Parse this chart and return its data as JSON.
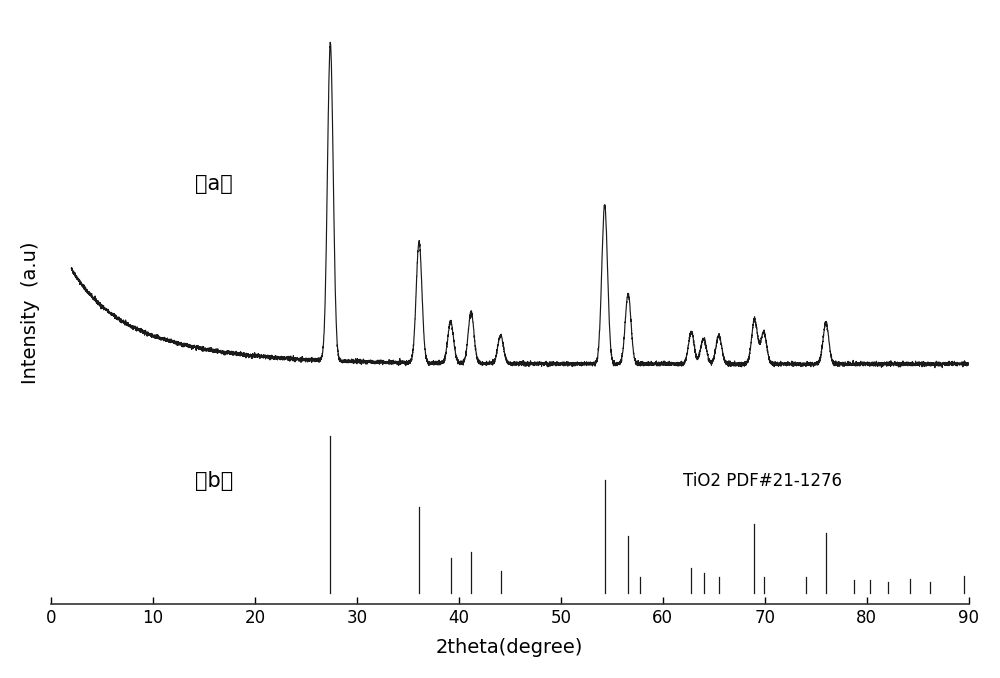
{
  "title": "",
  "xlabel": "2theta(degree)",
  "ylabel": "Intensity  (a.u)",
  "xlim": [
    0,
    90
  ],
  "background_color": "#ffffff",
  "curve_color": "#1a1a1a",
  "ref_color": "#1a1a1a",
  "label_a": "（a）",
  "label_b": "（b）",
  "annotation": "TiO2 PDF#21-1276",
  "xrd_peaks": {
    "positions": [
      27.4,
      36.1,
      39.2,
      41.2,
      44.1,
      54.3,
      56.6,
      62.8,
      64.0,
      65.5,
      69.0,
      69.9,
      76.0
    ],
    "heights": [
      1.0,
      0.38,
      0.13,
      0.16,
      0.09,
      0.5,
      0.22,
      0.1,
      0.08,
      0.09,
      0.14,
      0.1,
      0.13
    ]
  },
  "ref_peaks": {
    "positions": [
      27.4,
      36.1,
      39.2,
      41.2,
      44.1,
      54.3,
      56.6,
      57.8,
      62.8,
      64.0,
      65.5,
      68.9,
      69.9,
      74.0,
      76.0,
      78.8,
      80.3,
      82.1,
      84.2,
      86.2,
      89.5
    ],
    "heights": [
      1.0,
      0.55,
      0.22,
      0.26,
      0.14,
      0.72,
      0.36,
      0.1,
      0.16,
      0.13,
      0.1,
      0.44,
      0.1,
      0.1,
      0.38,
      0.08,
      0.08,
      0.07,
      0.09,
      0.07,
      0.11
    ]
  }
}
